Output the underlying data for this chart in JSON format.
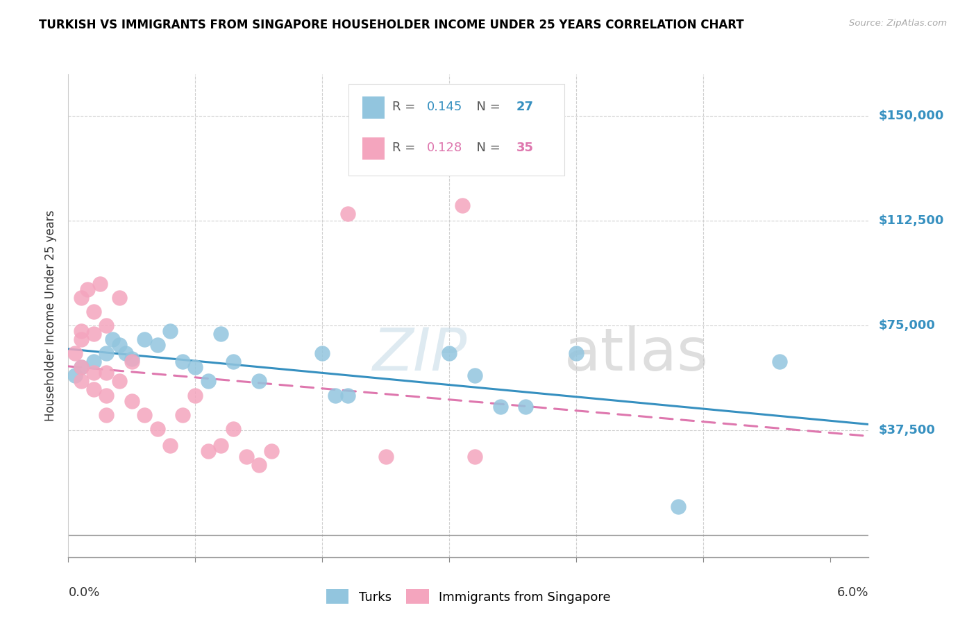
{
  "title": "TURKISH VS IMMIGRANTS FROM SINGAPORE HOUSEHOLDER INCOME UNDER 25 YEARS CORRELATION CHART",
  "source": "Source: ZipAtlas.com",
  "ylabel": "Householder Income Under 25 years",
  "legend_label1": "Turks",
  "legend_label2": "Immigrants from Singapore",
  "watermark_zip": "ZIP",
  "watermark_atlas": "atlas",
  "R1": 0.145,
  "N1": 27,
  "R2": 0.128,
  "N2": 35,
  "color_blue": "#92c5de",
  "color_pink": "#f4a5be",
  "color_blue_line": "#3690c0",
  "color_pink_line": "#de77ae",
  "color_blue_text": "#3690c0",
  "color_pink_text": "#de77ae",
  "color_ytick": "#3690c0",
  "ytick_vals": [
    37500,
    75000,
    112500,
    150000
  ],
  "ytick_labels": [
    "$37,500",
    "$75,000",
    "$112,500",
    "$150,000"
  ],
  "xmin": 0.0,
  "xmax": 0.063,
  "ymin": -8000,
  "ymax": 165000,
  "turks_x": [
    0.0005,
    0.001,
    0.002,
    0.003,
    0.0035,
    0.004,
    0.0045,
    0.005,
    0.006,
    0.007,
    0.008,
    0.009,
    0.01,
    0.011,
    0.012,
    0.013,
    0.015,
    0.02,
    0.021,
    0.022,
    0.03,
    0.032,
    0.034,
    0.036,
    0.04,
    0.048,
    0.056
  ],
  "turks_y": [
    57000,
    60000,
    62000,
    65000,
    70000,
    68000,
    65000,
    63000,
    70000,
    68000,
    73000,
    62000,
    60000,
    55000,
    72000,
    62000,
    55000,
    65000,
    50000,
    50000,
    65000,
    57000,
    46000,
    46000,
    65000,
    10000,
    62000
  ],
  "singapore_x": [
    0.0005,
    0.001,
    0.001,
    0.001,
    0.001,
    0.001,
    0.0015,
    0.002,
    0.002,
    0.002,
    0.002,
    0.0025,
    0.003,
    0.003,
    0.003,
    0.003,
    0.004,
    0.004,
    0.005,
    0.005,
    0.006,
    0.007,
    0.008,
    0.009,
    0.01,
    0.011,
    0.012,
    0.013,
    0.014,
    0.015,
    0.016,
    0.022,
    0.025,
    0.031,
    0.032
  ],
  "singapore_y": [
    65000,
    73000,
    85000,
    70000,
    60000,
    55000,
    88000,
    80000,
    72000,
    58000,
    52000,
    90000,
    75000,
    58000,
    50000,
    43000,
    85000,
    55000,
    62000,
    48000,
    43000,
    38000,
    32000,
    43000,
    50000,
    30000,
    32000,
    38000,
    28000,
    25000,
    30000,
    115000,
    28000,
    118000,
    28000
  ]
}
